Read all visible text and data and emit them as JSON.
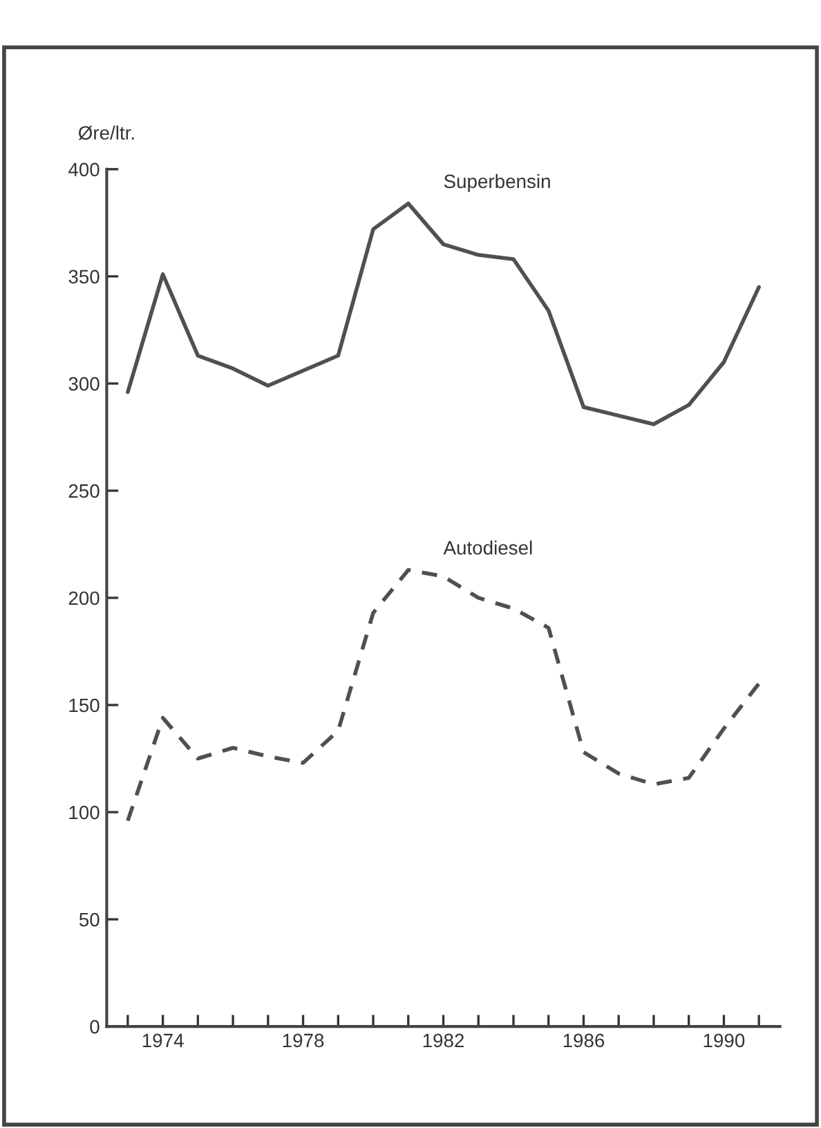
{
  "chart_data": {
    "type": "line",
    "ylabel": "Øre/ltr.",
    "x": [
      1973,
      1974,
      1975,
      1976,
      1977,
      1978,
      1979,
      1980,
      1981,
      1982,
      1983,
      1984,
      1985,
      1986,
      1987,
      1988,
      1989,
      1990,
      1991
    ],
    "series": [
      {
        "name": "Superbensin",
        "color": "#505050",
        "line_style": "solid",
        "values": [
          296,
          351,
          313,
          307,
          299,
          306,
          313,
          372,
          384,
          365,
          360,
          358,
          334,
          289,
          285,
          281,
          290,
          310,
          345
        ]
      },
      {
        "name": "Autodiesel",
        "color": "#505050",
        "line_style": "dashed",
        "values": [
          96,
          144,
          125,
          130,
          126,
          123,
          138,
          193,
          213,
          210,
          200,
          195,
          186,
          128,
          118,
          113,
          116,
          139,
          160
        ]
      }
    ],
    "xlim": [
      1972.4,
      1991.6
    ],
    "ylim": [
      0,
      400
    ],
    "xticks": [
      {
        "value": 1973,
        "label": null
      },
      1974,
      {
        "value": 1975,
        "label": null
      },
      {
        "value": 1976,
        "label": null
      },
      {
        "value": 1977,
        "label": null
      },
      1978,
      {
        "value": 1979,
        "label": null
      },
      {
        "value": 1980,
        "label": null
      },
      {
        "value": 1981,
        "label": null
      },
      1982,
      {
        "value": 1983,
        "label": null
      },
      {
        "value": 1984,
        "label": null
      },
      {
        "value": 1985,
        "label": null
      },
      1986,
      {
        "value": 1987,
        "label": null
      },
      {
        "value": 1988,
        "label": null
      },
      {
        "value": 1989,
        "label": null
      },
      1990,
      {
        "value": 1991,
        "label": null
      }
    ],
    "yticks": [
      0,
      50,
      100,
      150,
      200,
      250,
      300,
      350,
      400
    ],
    "grid": false
  }
}
